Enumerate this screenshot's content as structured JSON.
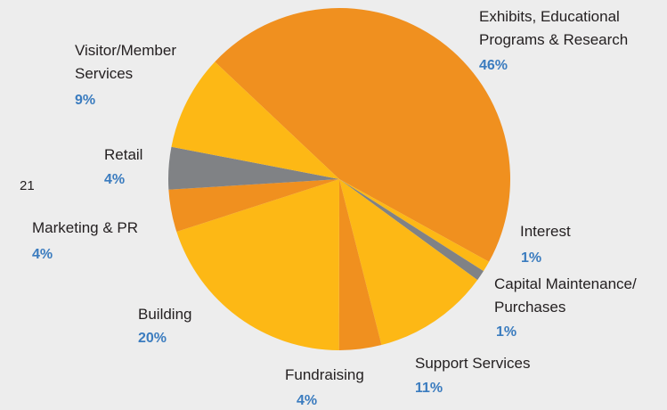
{
  "chart_data": {
    "type": "pie",
    "page_number": "21",
    "categories": [
      "Exhibits, Educational\nPrograms & Research",
      "Interest",
      "Capital Maintenance/\nPurchases",
      "Support Services",
      "Fundraising",
      "Building",
      "Marketing & PR",
      "Retail",
      "Visitor/Member\nServices"
    ],
    "values": [
      46,
      1,
      1,
      11,
      4,
      20,
      4,
      4,
      9
    ],
    "value_labels": [
      "46%",
      "1%",
      "1%",
      "11%",
      "4%",
      "20%",
      "4%",
      "4%",
      "9%"
    ],
    "colors": [
      "#f0901f",
      "#fdb815",
      "#808285",
      "#fdb815",
      "#f0901f",
      "#fdb815",
      "#f0901f",
      "#808285",
      "#fdb815"
    ]
  }
}
